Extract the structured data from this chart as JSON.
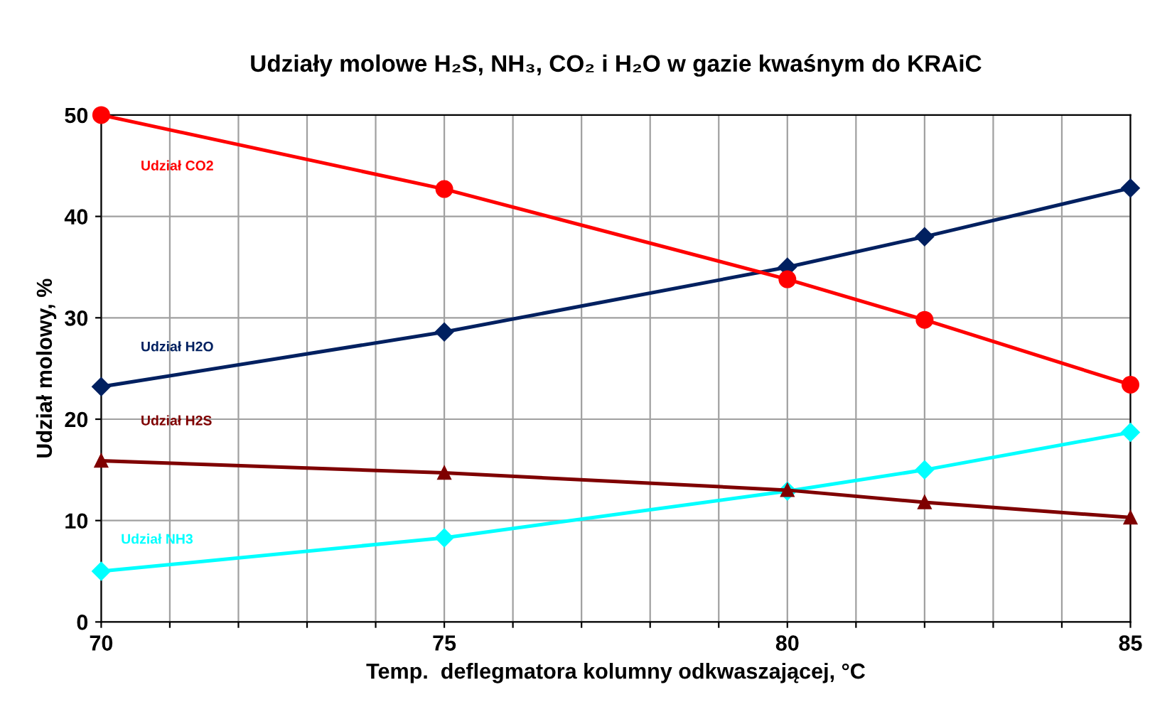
{
  "chart_data": {
    "type": "line",
    "title": "Udziały molowe H₂S, NH₃, CO₂ i H₂O w gazie kwaśnym do KRAiC",
    "xlabel": "Temp.  deflegmatora kolumny odkwaszającej, °C",
    "ylabel": "Udział molowy, %",
    "x": [
      70,
      75,
      80,
      82,
      85
    ],
    "series": [
      {
        "name": "Udział CO2",
        "color": "#ff0000",
        "marker": "circle",
        "values": [
          50,
          42.7,
          33.8,
          29.8,
          23.4
        ]
      },
      {
        "name": "Udział H2O",
        "color": "#002060",
        "marker": "diamond",
        "values": [
          23.2,
          28.6,
          35.0,
          38.0,
          42.8
        ]
      },
      {
        "name": "Udział H2S",
        "color": "#7f0000",
        "marker": "triangle",
        "values": [
          15.9,
          14.7,
          13.0,
          11.8,
          10.3
        ]
      },
      {
        "name": "Udział NH3",
        "color": "#00ffff",
        "marker": "diamond",
        "values": [
          5.0,
          8.3,
          12.9,
          15.0,
          18.7
        ]
      }
    ],
    "xlim": [
      70,
      85
    ],
    "xticks": [
      70,
      {
        "value": 71,
        "label": null
      },
      {
        "value": 72,
        "label": null
      },
      {
        "value": 73,
        "label": null
      },
      {
        "value": 74,
        "label": null
      },
      75,
      {
        "value": 76,
        "label": null
      },
      {
        "value": 77,
        "label": null
      },
      {
        "value": 78,
        "label": null
      },
      {
        "value": 79,
        "label": null
      },
      80,
      {
        "value": 81,
        "label": null
      },
      {
        "value": 82,
        "label": null
      },
      {
        "value": 83,
        "label": null
      },
      {
        "value": 84,
        "label": null
      },
      85
    ],
    "ylim": [
      0,
      50
    ],
    "yticks": [
      0,
      10,
      20,
      30,
      40,
      50
    ],
    "grid": true,
    "legend": false,
    "line_style": "solid"
  }
}
